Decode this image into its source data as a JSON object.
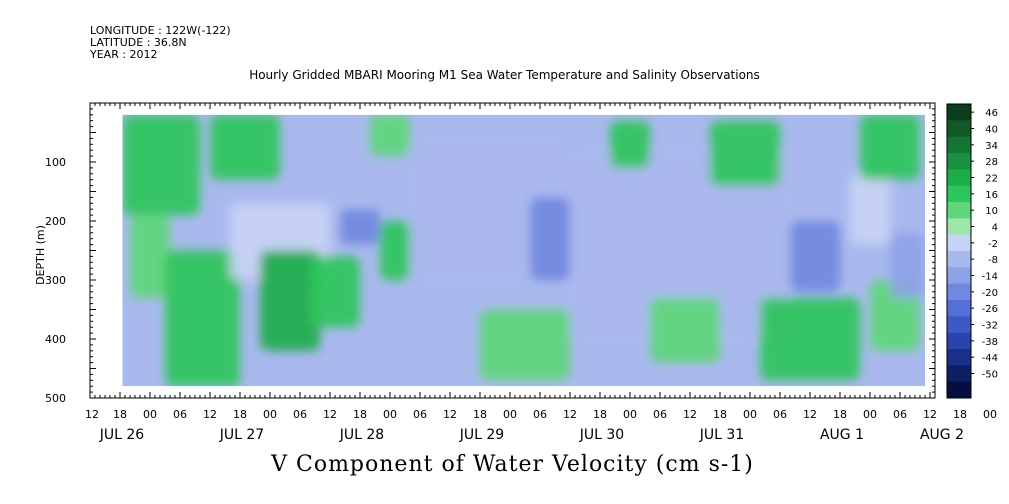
{
  "header": {
    "longitude": "LONGITUDE : 122W(-122)",
    "latitude": "LATITUDE : 36.8N",
    "year": "YEAR : 2012",
    "title": "Hourly Gridded MBARI Mooring M1 Sea Water Temperature and Salinity Observations"
  },
  "chart_data": {
    "type": "heatmap",
    "title": "Hourly Gridded MBARI Mooring M1 Sea Water Temperature and Salinity Observations",
    "xlabel": "V Component of Water Velocity (cm s-1)",
    "ylabel": "DEPTH (m)",
    "x_unit": "hours since 2012-07-26 12:00",
    "xlim": [
      0,
      169
    ],
    "ylim": [
      500,
      0
    ],
    "y_ticks": [
      100,
      200,
      300,
      400,
      500
    ],
    "x_tick_labels": [
      "12",
      "18",
      "00",
      "06",
      "12",
      "18",
      "00",
      "06",
      "12",
      "18",
      "00",
      "06",
      "12",
      "18",
      "00",
      "06",
      "12",
      "18",
      "00",
      "06",
      "12",
      "18",
      "00",
      "06",
      "12",
      "18",
      "00",
      "06",
      "12",
      "18",
      "00",
      "06",
      "12",
      "18",
      "00",
      "06",
      "12"
    ],
    "day_labels": [
      {
        "label": "JUL 26",
        "hour": 0
      },
      {
        "label": "JUL 27",
        "hour": 24
      },
      {
        "label": "JUL 28",
        "hour": 48
      },
      {
        "label": "JUL 29",
        "hour": 72
      },
      {
        "label": "JUL 30",
        "hour": 96
      },
      {
        "label": "JUL 31",
        "hour": 120
      },
      {
        "label": "AUG  1",
        "hour": 144
      },
      {
        "label": "AUG  2",
        "hour": 164
      }
    ],
    "colorbar": {
      "levels": [
        46,
        40,
        34,
        28,
        22,
        16,
        10,
        4,
        -2,
        -8,
        -14,
        -20,
        -26,
        -32,
        -38,
        -44,
        -50
      ],
      "colors": [
        "#0b3d1d",
        "#0f5a28",
        "#137634",
        "#17913f",
        "#1bad4a",
        "#2dc65a",
        "#5dd77a",
        "#9be6a8",
        "#c7d3f4",
        "#a9b9ee",
        "#8ea2e8",
        "#7188e0",
        "#5470d6",
        "#3c59c8",
        "#2944ae",
        "#1a318c",
        "#0d1f66",
        "#050e40"
      ]
    },
    "data_extent_hours": [
      6.5,
      167
    ],
    "data_extent_depth": [
      20,
      480
    ],
    "regions": [
      {
        "hours": [
          6,
          22
        ],
        "depth": [
          20,
          190
        ],
        "value": 12
      },
      {
        "hours": [
          8,
          16
        ],
        "depth": [
          190,
          330
        ],
        "value": 6
      },
      {
        "hours": [
          15,
          30
        ],
        "depth": [
          250,
          480
        ],
        "value": 14
      },
      {
        "hours": [
          24,
          38
        ],
        "depth": [
          20,
          130
        ],
        "value": 10
      },
      {
        "hours": [
          28,
          48
        ],
        "depth": [
          170,
          300
        ],
        "value": -8
      },
      {
        "hours": [
          34,
          46
        ],
        "depth": [
          250,
          420
        ],
        "value": 18
      },
      {
        "hours": [
          44,
          54
        ],
        "depth": [
          260,
          380
        ],
        "value": 12
      },
      {
        "hours": [
          50,
          58
        ],
        "depth": [
          180,
          240
        ],
        "value": -24
      },
      {
        "hours": [
          56,
          64
        ],
        "depth": [
          20,
          90
        ],
        "value": 8
      },
      {
        "hours": [
          58,
          64
        ],
        "depth": [
          200,
          300
        ],
        "value": 14
      },
      {
        "hours": [
          64,
          96
        ],
        "depth": [
          60,
          300
        ],
        "value": -14
      },
      {
        "hours": [
          78,
          96
        ],
        "depth": [
          350,
          470
        ],
        "value": 6
      },
      {
        "hours": [
          88,
          96
        ],
        "depth": [
          160,
          300
        ],
        "value": -26
      },
      {
        "hours": [
          96,
          140
        ],
        "depth": [
          80,
          400
        ],
        "value": -12
      },
      {
        "hours": [
          104,
          112
        ],
        "depth": [
          30,
          110
        ],
        "value": 10
      },
      {
        "hours": [
          112,
          126
        ],
        "depth": [
          330,
          440
        ],
        "value": 6
      },
      {
        "hours": [
          124,
          138
        ],
        "depth": [
          30,
          140
        ],
        "value": 12
      },
      {
        "hours": [
          134,
          154
        ],
        "depth": [
          330,
          470
        ],
        "value": 10
      },
      {
        "hours": [
          140,
          150
        ],
        "depth": [
          200,
          320
        ],
        "value": -22
      },
      {
        "hours": [
          152,
          160
        ],
        "depth": [
          120,
          240
        ],
        "value": -6
      },
      {
        "hours": [
          154,
          166
        ],
        "depth": [
          20,
          130
        ],
        "value": 14
      },
      {
        "hours": [
          156,
          166
        ],
        "depth": [
          300,
          420
        ],
        "value": 4
      },
      {
        "hours": [
          160,
          167
        ],
        "depth": [
          220,
          330
        ],
        "value": -20
      }
    ],
    "background_value": -10
  }
}
